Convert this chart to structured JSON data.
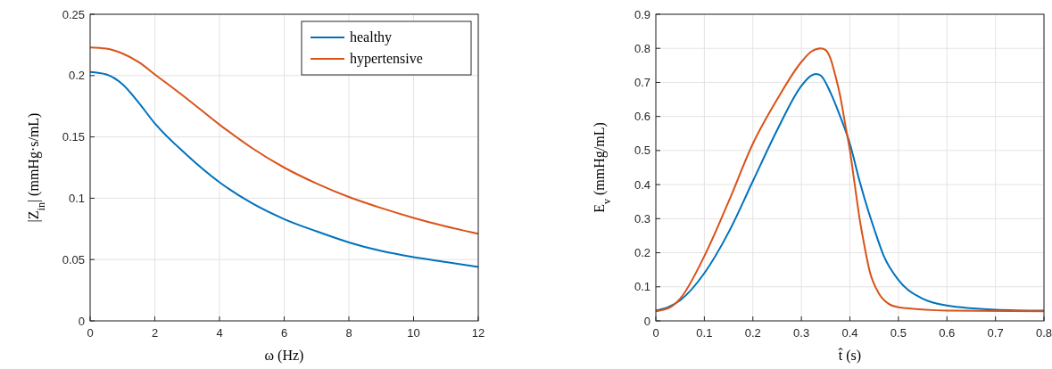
{
  "chart_data": [
    {
      "type": "line",
      "xlabel": "ω (Hz)",
      "ylabel": "|Z$_{in}$| (mmHg·s/mL)",
      "x": [
        0,
        0.5,
        1,
        1.5,
        2,
        3,
        4,
        5,
        6,
        7,
        8,
        9,
        10,
        11,
        12
      ],
      "xlim": [
        0,
        12
      ],
      "xticks": [
        0,
        2,
        4,
        6,
        8,
        10,
        12
      ],
      "ylim": [
        0,
        0.25
      ],
      "yticks": [
        0,
        0.05,
        0.1,
        0.15,
        0.2,
        0.25
      ],
      "grid": true,
      "legend": "top right",
      "series": [
        {
          "name": "healthy",
          "color": "#0072bd",
          "values": [
            0.203,
            0.201,
            0.193,
            0.178,
            0.161,
            0.135,
            0.113,
            0.096,
            0.083,
            0.073,
            0.064,
            0.057,
            0.052,
            0.048,
            0.044
          ]
        },
        {
          "name": "hypertensive",
          "color": "#d95319",
          "values": [
            0.223,
            0.222,
            0.218,
            0.211,
            0.201,
            0.181,
            0.16,
            0.141,
            0.125,
            0.112,
            0.101,
            0.092,
            0.084,
            0.077,
            0.071
          ]
        }
      ]
    },
    {
      "type": "line",
      "xlabel": "t̂ (s)",
      "ylabel": "E$_{v}$ (mmHg/mL)",
      "xlim": [
        0,
        0.8
      ],
      "xticks": [
        0,
        0.1,
        0.2,
        0.3,
        0.4,
        0.5,
        0.6,
        0.7,
        0.8
      ],
      "ylim": [
        0,
        0.9
      ],
      "yticks": [
        0,
        0.1,
        0.2,
        0.3,
        0.4,
        0.5,
        0.6,
        0.7,
        0.8,
        0.9
      ],
      "grid": true,
      "legend": false,
      "series": [
        {
          "color": "#0072bd",
          "x": [
            0,
            0.05,
            0.1,
            0.15,
            0.2,
            0.25,
            0.3,
            0.32,
            0.33,
            0.34,
            0.36,
            0.38,
            0.4,
            0.42,
            0.43,
            0.45,
            0.47,
            0.5,
            0.55,
            0.6,
            0.7,
            0.8
          ],
          "values": [
            0.03,
            0.06,
            0.14,
            0.26,
            0.41,
            0.56,
            0.69,
            0.72,
            0.725,
            0.72,
            0.67,
            0.6,
            0.52,
            0.41,
            0.36,
            0.27,
            0.19,
            0.12,
            0.065,
            0.045,
            0.033,
            0.03
          ]
        },
        {
          "color": "#d95319",
          "x": [
            0,
            0.03,
            0.05,
            0.1,
            0.15,
            0.2,
            0.25,
            0.3,
            0.32,
            0.34,
            0.35,
            0.36,
            0.37,
            0.38,
            0.39,
            0.4,
            0.41,
            0.42,
            0.43,
            0.44,
            0.46,
            0.48,
            0.5,
            0.6,
            0.8
          ],
          "values": [
            0.028,
            0.04,
            0.065,
            0.19,
            0.35,
            0.52,
            0.65,
            0.76,
            0.79,
            0.8,
            0.795,
            0.77,
            0.72,
            0.66,
            0.58,
            0.5,
            0.4,
            0.3,
            0.22,
            0.15,
            0.08,
            0.05,
            0.04,
            0.03,
            0.028
          ]
        }
      ]
    }
  ]
}
